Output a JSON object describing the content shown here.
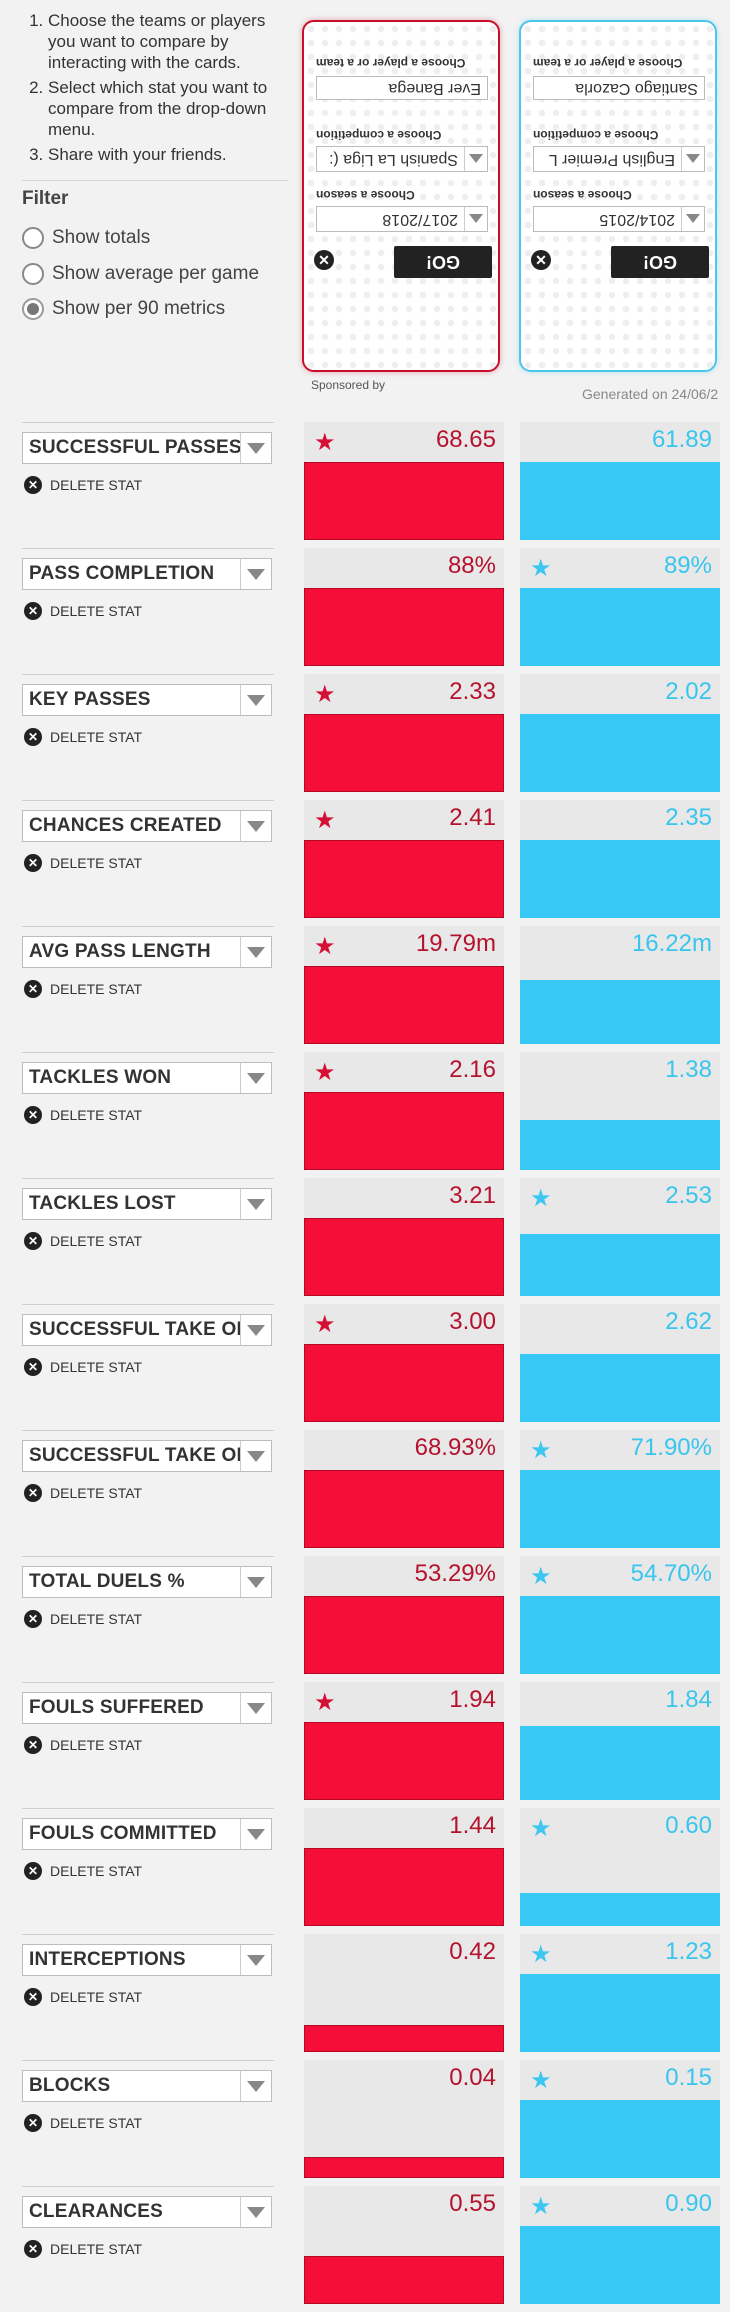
{
  "instructions": [
    "Choose the teams or players you want to compare by interacting with the cards.",
    "Select which stat you want to compare from the drop-down menu.",
    "Share with your friends."
  ],
  "filter": {
    "title": "Filter",
    "options": [
      {
        "label": "Show totals",
        "checked": false
      },
      {
        "label": "Show average per game",
        "checked": false
      },
      {
        "label": "Show per 90 metrics",
        "checked": true
      }
    ]
  },
  "card_left": {
    "player_label": "Choose a player or a team",
    "player_value": "Ever Banega",
    "competition_label": "Choose a competition",
    "competition_value": "Spanish La Liga (:",
    "season_label": "Choose a season",
    "season_value": "2017/2018",
    "go_label": "GO!",
    "close_glyph": "✕",
    "accent": "#c8102e"
  },
  "card_right": {
    "player_label": "Choose a player or a team",
    "player_value": "Santiago Cazorla",
    "competition_label": "Choose a competition",
    "competition_value": "English Premier L",
    "season_label": "Choose a season",
    "season_value": "2014/2015",
    "go_label": "GO!",
    "close_glyph": "✕",
    "accent": "#4cc6ea"
  },
  "sponsored_text": "Sponsored by",
  "generated_text": "Generated on 24/06/2",
  "delete_label": "DELETE STAT",
  "stats": [
    {
      "name": "SUCCESSFUL PASSES",
      "left": "68.65",
      "right": "61.89",
      "left_star": true,
      "right_star": false,
      "left_fill": 1.0,
      "right_fill": 1.0
    },
    {
      "name": "PASS COMPLETION",
      "left": "88%",
      "right": "89%",
      "left_star": false,
      "right_star": true,
      "left_fill": 1.0,
      "right_fill": 1.0
    },
    {
      "name": "KEY PASSES",
      "left": "2.33",
      "right": "2.02",
      "left_star": true,
      "right_star": false,
      "left_fill": 1.0,
      "right_fill": 1.0
    },
    {
      "name": "CHANCES CREATED",
      "left": "2.41",
      "right": "2.35",
      "left_star": true,
      "right_star": false,
      "left_fill": 1.0,
      "right_fill": 1.0
    },
    {
      "name": "AVG PASS LENGTH",
      "left": "19.79m",
      "right": "16.22m",
      "left_star": true,
      "right_star": false,
      "left_fill": 1.0,
      "right_fill": 0.82
    },
    {
      "name": "TACKLES WON",
      "left": "2.16",
      "right": "1.38",
      "left_star": true,
      "right_star": false,
      "left_fill": 1.0,
      "right_fill": 0.64
    },
    {
      "name": "TACKLES LOST",
      "left": "3.21",
      "right": "2.53",
      "left_star": false,
      "right_star": true,
      "left_fill": 1.0,
      "right_fill": 0.79
    },
    {
      "name": "SUCCESSFUL TAKE ONS",
      "left": "3.00",
      "right": "2.62",
      "left_star": true,
      "right_star": false,
      "left_fill": 1.0,
      "right_fill": 0.87
    },
    {
      "name": "SUCCESSFUL TAKE ONS %",
      "left": "68.93%",
      "right": "71.90%",
      "left_star": false,
      "right_star": true,
      "left_fill": 1.0,
      "right_fill": 1.0
    },
    {
      "name": "TOTAL DUELS %",
      "left": "53.29%",
      "right": "54.70%",
      "left_star": false,
      "right_star": true,
      "left_fill": 1.0,
      "right_fill": 1.0
    },
    {
      "name": "FOULS SUFFERED",
      "left": "1.94",
      "right": "1.84",
      "left_star": true,
      "right_star": false,
      "left_fill": 1.0,
      "right_fill": 0.95
    },
    {
      "name": "FOULS COMMITTED",
      "left": "1.44",
      "right": "0.60",
      "left_star": false,
      "right_star": true,
      "left_fill": 1.0,
      "right_fill": 0.42
    },
    {
      "name": "INTERCEPTIONS",
      "left": "0.42",
      "right": "1.23",
      "left_star": false,
      "right_star": true,
      "left_fill": 0.34,
      "right_fill": 1.0
    },
    {
      "name": "BLOCKS",
      "left": "0.04",
      "right": "0.15",
      "left_star": false,
      "right_star": true,
      "left_fill": 0.27,
      "right_fill": 1.0
    },
    {
      "name": "CLEARANCES",
      "left": "0.55",
      "right": "0.90",
      "left_star": false,
      "right_star": true,
      "left_fill": 0.61,
      "right_fill": 1.0
    }
  ],
  "colors": {
    "left_bar": "#f40d36",
    "right_bar": "#37c8f6",
    "left_text": "#b5122e",
    "right_text": "#38c5ee"
  }
}
